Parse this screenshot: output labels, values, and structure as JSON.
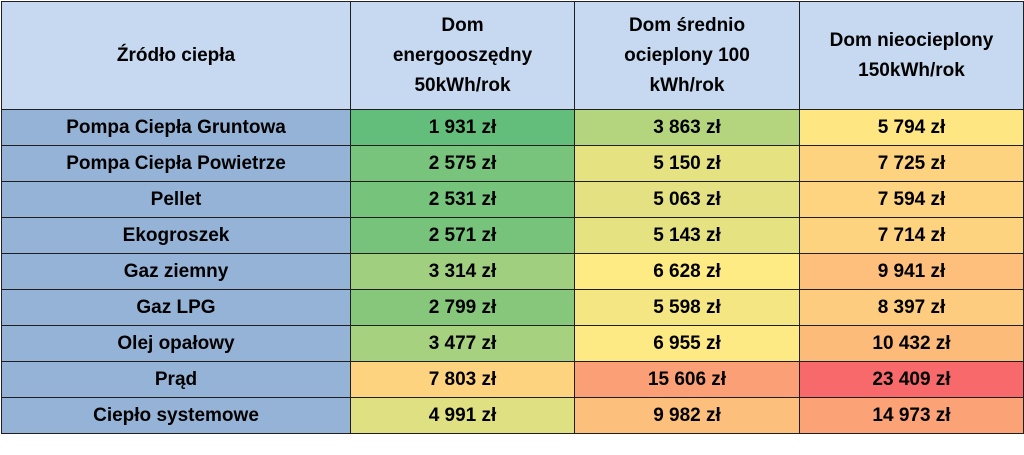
{
  "table": {
    "header": {
      "source": "Źródło ciepła",
      "col1": [
        "Dom",
        "energooszędny",
        "50kWh/rok"
      ],
      "col2": [
        "Dom średnio",
        "ocieplony 100",
        "kWh/rok"
      ],
      "col3": [
        "Dom nieocieplony",
        "150kWh/rok"
      ]
    },
    "rows": [
      {
        "label": "Pompa Ciepła Gruntowa",
        "v1": "1 931 zł",
        "v2": "3 863 zł",
        "v3": "5 794 zł",
        "c1": "#63be7b",
        "c2": "#b4d57e",
        "c3": "#fee783"
      },
      {
        "label": "Pompa Ciepła Powietrze",
        "v1": "2 575 zł",
        "v2": "5 150 zł",
        "v3": "7 725 zł",
        "c1": "#78c47c",
        "c2": "#e5e282",
        "c3": "#fed380"
      },
      {
        "label": "Pellet",
        "v1": "2 531 zł",
        "v2": "5 063 zł",
        "v3": "7 594 zł",
        "c1": "#76c37c",
        "c2": "#e3e182",
        "c3": "#fed480"
      },
      {
        "label": "Ekogroszek",
        "v1": "2 571 zł",
        "v2": "5 143 zł",
        "v3": "7 714 zł",
        "c1": "#77c37c",
        "c2": "#e5e282",
        "c3": "#fed380"
      },
      {
        "label": "Gaz ziemny",
        "v1": "3 314 zł",
        "v2": "6 628 zł",
        "v3": "9 941 zł",
        "c1": "#9fcf7f",
        "c2": "#feeb84",
        "c3": "#fdbf7b"
      },
      {
        "label": "Gaz LPG",
        "v1": "2 799 zł",
        "v2": "5 598 zł",
        "v3": "8 397 zł",
        "c1": "#86c77c",
        "c2": "#f4e683",
        "c3": "#fecc7f"
      },
      {
        "label": "Olej opałowy",
        "v1": "3 477 zł",
        "v2": "6 955 zł",
        "v3": "10 432 zł",
        "c1": "#a6d17f",
        "c2": "#feea84",
        "c3": "#fdbb7a"
      },
      {
        "label": "Prąd",
        "v1": "7 803 zł",
        "v2": "15 606 zł",
        "v3": "23 409 zł",
        "c1": "#fed380",
        "c2": "#fba076",
        "c3": "#f8696b"
      },
      {
        "label": "Ciepło systemowe",
        "v1": "4 991 zł",
        "v2": "9 982 zł",
        "v3": "14 973 zł",
        "c1": "#dfe082",
        "c2": "#fdc07c",
        "c3": "#fba276"
      }
    ]
  },
  "chart_data": {
    "type": "table",
    "columns": [
      "Źródło ciepła",
      "Dom energooszędny 50kWh/rok",
      "Dom średnio ocieplony 100 kWh/rok",
      "Dom nieocieplony 150kWh/rok"
    ],
    "rows": [
      [
        "Pompa Ciepła Gruntowa",
        1931,
        3863,
        5794
      ],
      [
        "Pompa Ciepła Powietrze",
        2575,
        5150,
        7725
      ],
      [
        "Pellet",
        2531,
        5063,
        7594
      ],
      [
        "Ekogroszek",
        2571,
        5143,
        7714
      ],
      [
        "Gaz ziemny",
        3314,
        6628,
        9941
      ],
      [
        "Gaz LPG",
        2799,
        5598,
        8397
      ],
      [
        "Olej opałowy",
        3477,
        6955,
        10432
      ],
      [
        "Prąd",
        7803,
        15606,
        23409
      ],
      [
        "Ciepło systemowe",
        4991,
        9982,
        14973
      ]
    ],
    "unit": "zł",
    "color_scale": {
      "low": "#63be7b",
      "mid": "#ffeb84",
      "high": "#f8696b"
    }
  }
}
